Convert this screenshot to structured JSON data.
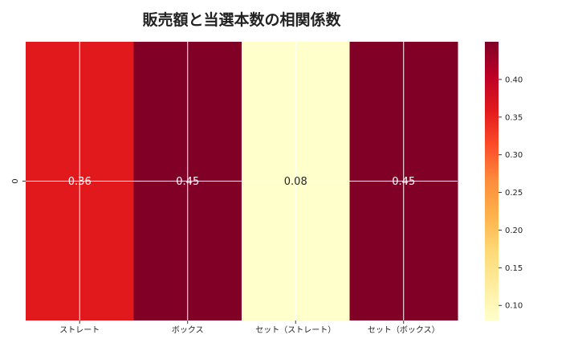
{
  "chart_data": {
    "type": "heatmap",
    "title": "販売額と当選本数の相関係数",
    "xlabel": "",
    "ylabel": "",
    "x_categories": [
      "ストレート",
      "ボックス",
      "セット（ストレート）",
      "セット（ボックス）"
    ],
    "y_categories": [
      "0"
    ],
    "values": [
      [
        0.36,
        0.45,
        0.08,
        0.45
      ]
    ],
    "annotations": [
      "0.36",
      "0.45",
      "0.08",
      "0.45"
    ],
    "colorscale": "YlOrRd",
    "vmin": 0.08,
    "vmax": 0.45,
    "colorbar_ticks": [
      0.1,
      0.15,
      0.2,
      0.25,
      0.3,
      0.35,
      0.4
    ],
    "colorbar_tick_labels": [
      "0.10",
      "0.15",
      "0.20",
      "0.25",
      "0.30",
      "0.35",
      "0.40"
    ],
    "grid": true,
    "legend": "colorbar-right"
  }
}
